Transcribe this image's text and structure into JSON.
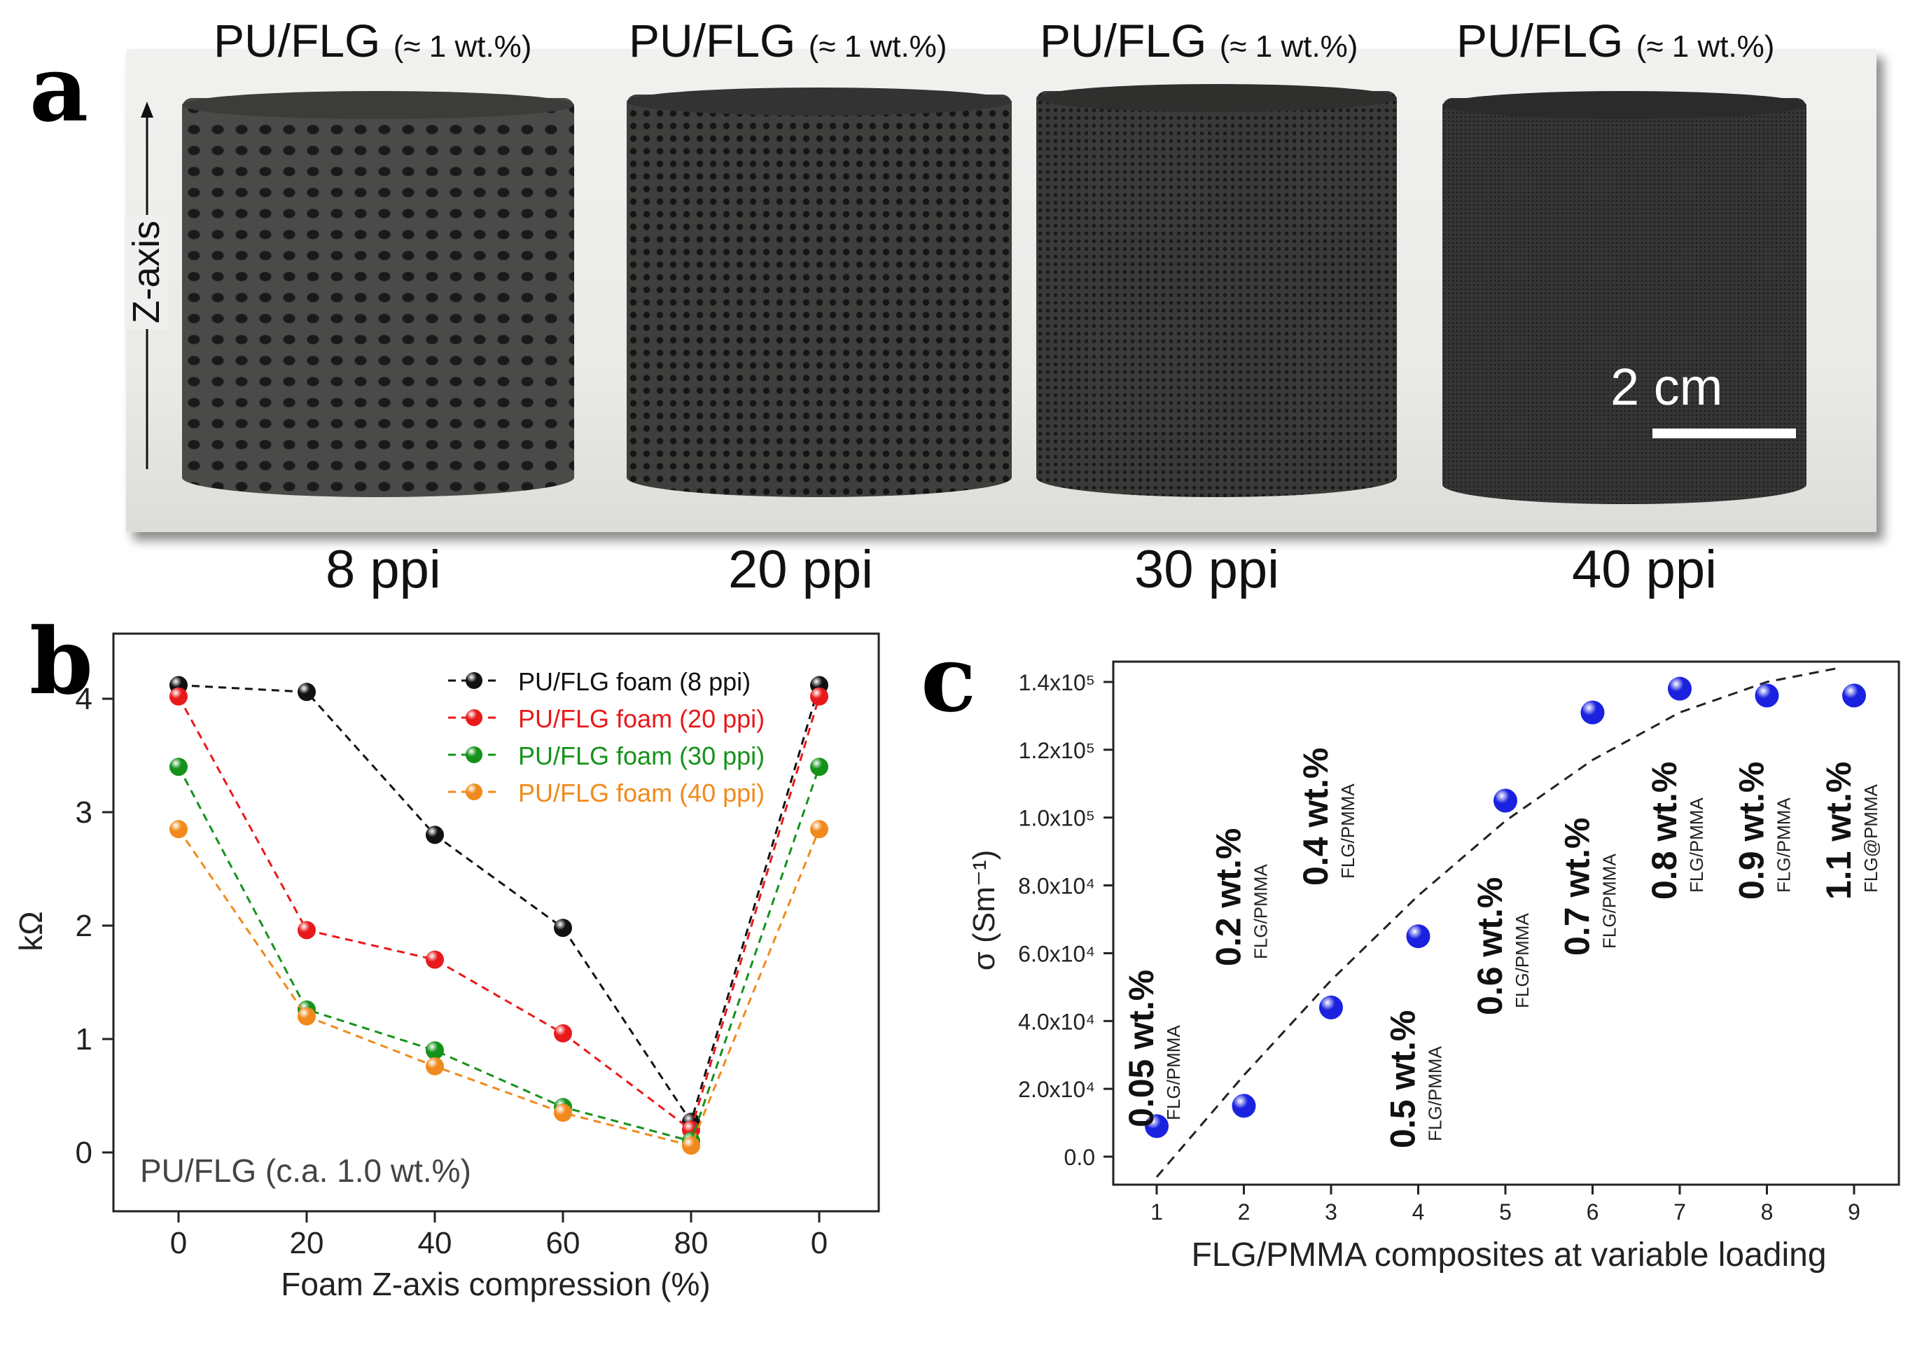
{
  "panel_labels": {
    "a": "a",
    "b": "b",
    "c": "c"
  },
  "photo": {
    "samples": [
      {
        "title": "PU/FLG",
        "loading": "(≈ 1 wt.%)",
        "ppi": "8 ppi"
      },
      {
        "title": "PU/FLG",
        "loading": "(≈ 1 wt.%)",
        "ppi": "20 ppi"
      },
      {
        "title": "PU/FLG",
        "loading": "(≈ 1 wt.%)",
        "ppi": "30 ppi"
      },
      {
        "title": "PU/FLG",
        "loading": "(≈ 1 wt.%)",
        "ppi": "40 ppi"
      }
    ],
    "axis_label": "Z-axis",
    "scale_label": "2 cm"
  },
  "chart_data": [
    {
      "type": "line",
      "panel": "b",
      "title": "",
      "xlabel": "Foam Z-axis compression (%)",
      "ylabel": "kΩ",
      "categories": [
        "0",
        "20",
        "40",
        "60",
        "80",
        "0"
      ],
      "yticks": [
        "0",
        "1",
        "2",
        "3",
        "4"
      ],
      "ylim": [
        -0.4,
        4.55
      ],
      "annotation": "PU/FLG (c.a. 1.0 wt.%)",
      "legend_position": "top-right",
      "series": [
        {
          "name": "PU/FLG foam (8 ppi)",
          "color": "#111111",
          "values": [
            4.12,
            4.06,
            2.8,
            1.98,
            0.27,
            4.12
          ]
        },
        {
          "name": "PU/FLG foam (20 ppi)",
          "color": "#e8191b",
          "values": [
            4.02,
            1.96,
            1.7,
            1.05,
            0.2,
            4.02
          ]
        },
        {
          "name": "PU/FLG foam (30 ppi)",
          "color": "#14921a",
          "values": [
            3.4,
            1.26,
            0.9,
            0.4,
            0.1,
            3.4
          ]
        },
        {
          "name": "PU/FLG foam (40 ppi)",
          "color": "#f08a1c",
          "values": [
            2.85,
            1.2,
            0.76,
            0.35,
            0.06,
            2.85
          ]
        }
      ]
    },
    {
      "type": "scatter",
      "panel": "c",
      "title": "",
      "xlabel": "FLG/PMMA composites at variable loading",
      "ylabel": "σ (Sm⁻¹)",
      "xticks": [
        "1",
        "2",
        "3",
        "4",
        "5",
        "6",
        "7",
        "8",
        "9"
      ],
      "yticks": [
        "0.0",
        "2.0x10⁴",
        "4.0x10⁴",
        "6.0x10⁴",
        "8.0x10⁴",
        "1.0x10⁵",
        "1.2x10⁵",
        "1.4x10⁵"
      ],
      "xlim": [
        0.5,
        9.5
      ],
      "ylim": [
        -10000,
        146000
      ],
      "points": [
        {
          "x": 1,
          "y": 9000,
          "label": "0.05 wt.%",
          "sub": "FLG/PMMA"
        },
        {
          "x": 2,
          "y": 15000,
          "label": "0.2 wt.%",
          "sub": "FLG/PMMA"
        },
        {
          "x": 3,
          "y": 44000,
          "label": "0.4 wt.%",
          "sub": "FLG/PMMA"
        },
        {
          "x": 4,
          "y": 65000,
          "label": "0.5 wt.%",
          "sub": "FLG/PMMA"
        },
        {
          "x": 5,
          "y": 105000,
          "label": "0.6 wt.%",
          "sub": "FLG/PMMA"
        },
        {
          "x": 6,
          "y": 131000,
          "label": "0.7 wt.%",
          "sub": "FLG/PMMA"
        },
        {
          "x": 7,
          "y": 138000,
          "label": "0.8 wt.%",
          "sub": "FLG/PMMA"
        },
        {
          "x": 8,
          "y": 136000,
          "label": "0.9 wt.%",
          "sub": "FLG/PMMA"
        },
        {
          "x": 9,
          "y": 136000,
          "label": "1.1 wt.%",
          "sub": "FLG@PMMA"
        }
      ],
      "trend": {
        "style": "dashed",
        "x": [
          1,
          2,
          3,
          4,
          5,
          6,
          7,
          8,
          8.8
        ],
        "y": [
          -6000,
          24000,
          52000,
          77000,
          99000,
          117000,
          131000,
          140000,
          144000
        ]
      }
    }
  ]
}
